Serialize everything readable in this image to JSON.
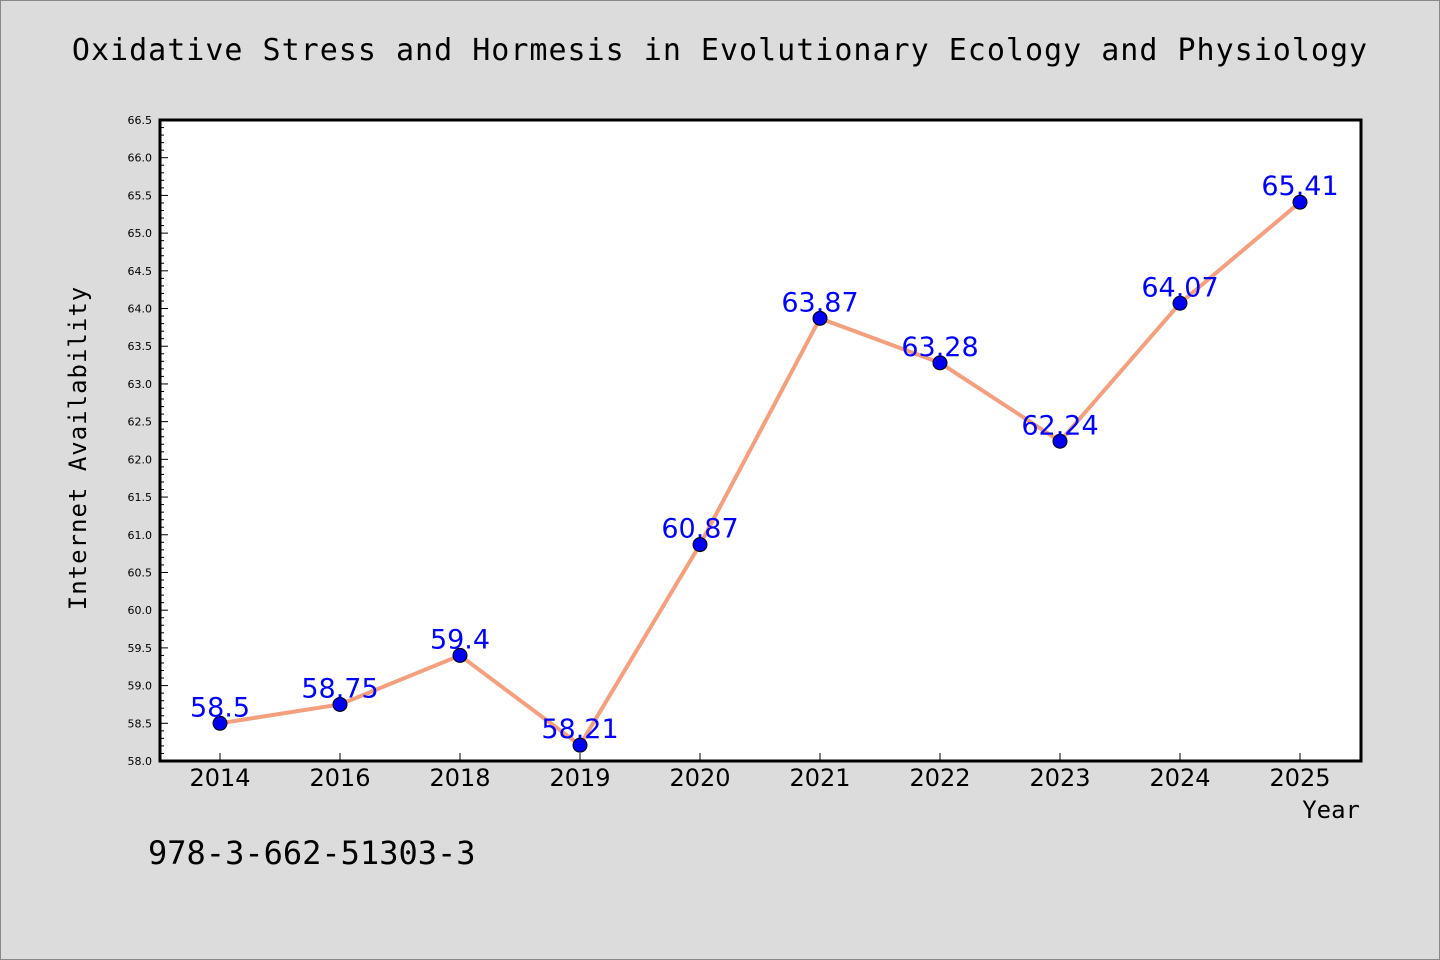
{
  "chart_data": {
    "type": "line",
    "title": "Oxidative Stress and Hormesis in Evolutionary Ecology and Physiology",
    "xlabel": "Year",
    "ylabel": "Internet Availability",
    "categories": [
      "2014",
      "2016",
      "2018",
      "2019",
      "2020",
      "2021",
      "2022",
      "2023",
      "2024",
      "2025"
    ],
    "series": [
      {
        "values": [
          58.5,
          58.75,
          59.4,
          58.21,
          60.87,
          63.87,
          63.28,
          62.24,
          64.07,
          65.41
        ],
        "labels": [
          "58.5",
          "58.75",
          "59.4",
          "58.21",
          "60.87",
          "63.87",
          "63.28",
          "62.24",
          "64.07",
          "65.41"
        ]
      }
    ],
    "ylim": [
      58.0,
      66.5
    ],
    "yticks": [
      "58.0",
      "58.5",
      "59.0",
      "59.5",
      "60.0",
      "60.5",
      "61.0",
      "61.5",
      "62.0",
      "62.5",
      "63.0",
      "63.5",
      "64.0",
      "64.5",
      "65.0",
      "65.5",
      "66.0",
      "66.5"
    ],
    "grid": false,
    "line_color": "#f4a07e",
    "marker_color": "#0000ee",
    "label_color": "#0000ff"
  },
  "footer_text": "978-3-662-51303-3"
}
